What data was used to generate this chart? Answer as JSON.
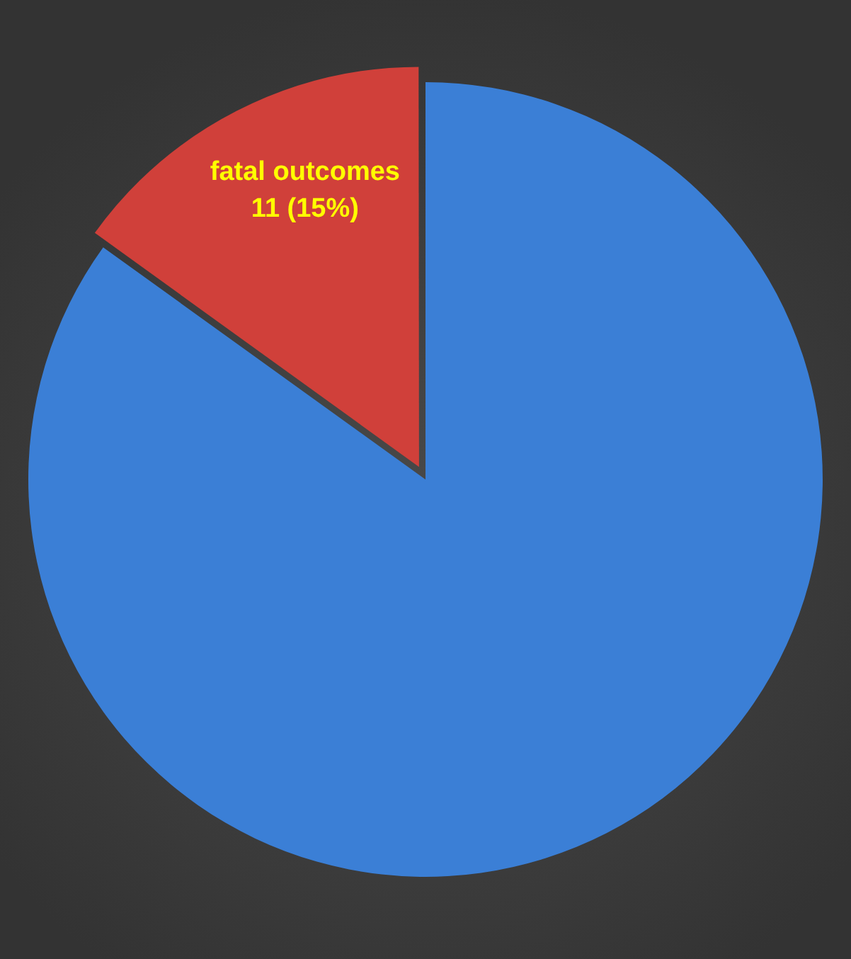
{
  "chart_data": {
    "type": "pie",
    "categories": [
      null,
      "fatal outcomes"
    ],
    "values": [
      62,
      11
    ],
    "colors": [
      "#3b7fd6",
      "#d0403a"
    ],
    "value_labels": [
      null,
      "11 (15%)"
    ],
    "legend": false
  }
}
